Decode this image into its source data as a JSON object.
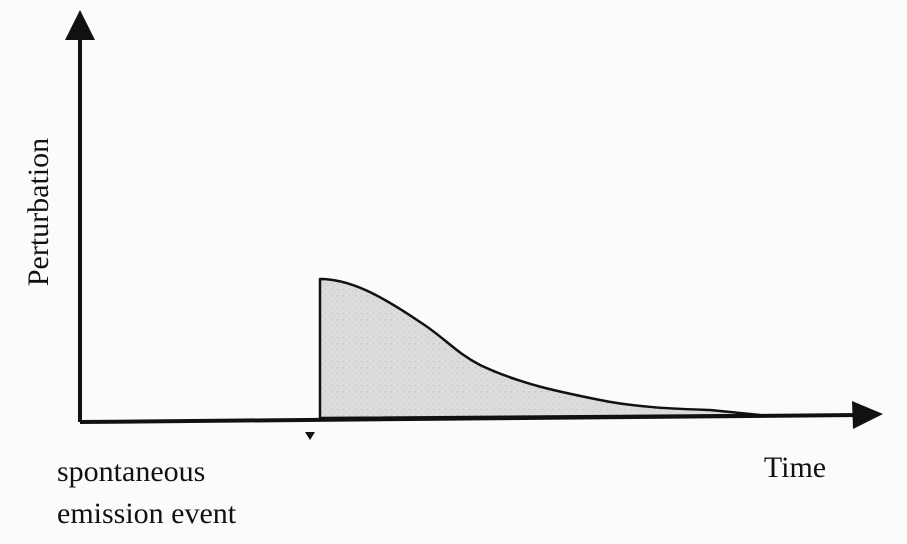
{
  "axes": {
    "y_label": "Perturbation",
    "x_label": "Time"
  },
  "event_label": {
    "line1": "spontaneous",
    "line2": "emission event"
  },
  "colors": {
    "line": "#111111",
    "fill": "#d9d9d9",
    "background": "#fbfbfa"
  }
}
